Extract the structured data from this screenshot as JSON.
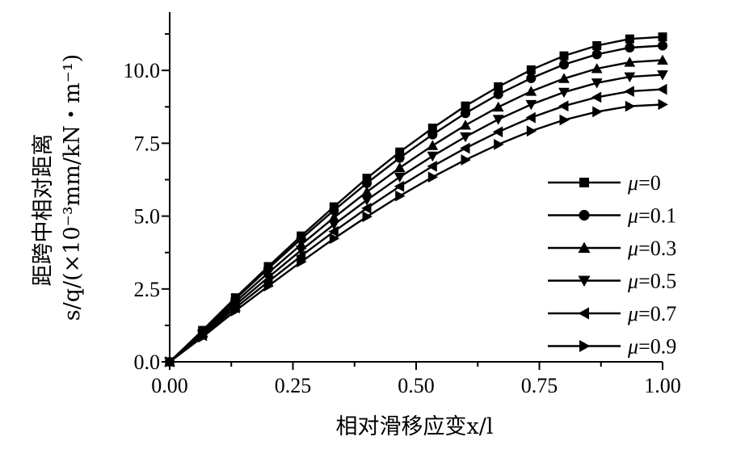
{
  "chart_data": {
    "type": "line",
    "xlabel": "相对滑移应变x/l",
    "ylabel_line1": "距跨中相对距离",
    "ylabel_line2": "s/q/(×10⁻³mm/kN・m⁻¹)",
    "xlim": [
      0,
      1
    ],
    "ylim": [
      0,
      12
    ],
    "x_ticks": [
      "0.00",
      "0.25",
      "0.50",
      "0.75",
      "1.00"
    ],
    "y_ticks": [
      "0.0",
      "2.5",
      "5.0",
      "7.5",
      "10.0"
    ],
    "grid": false,
    "legend_position": "right",
    "x": [
      0,
      0.0667,
      0.1333,
      0.2,
      0.2667,
      0.3333,
      0.4,
      0.4667,
      0.5333,
      0.6,
      0.6667,
      0.7333,
      0.8,
      0.8667,
      0.9333,
      1.0
    ],
    "series": [
      {
        "name": "μ=0",
        "marker": "square",
        "values": [
          0,
          1.08,
          2.2,
          3.27,
          4.32,
          5.32,
          6.3,
          7.2,
          8.02,
          8.78,
          9.44,
          10.02,
          10.5,
          10.85,
          11.08,
          11.15
        ]
      },
      {
        "name": "μ=0.1",
        "marker": "circle",
        "values": [
          0,
          1.05,
          2.15,
          3.2,
          4.22,
          5.2,
          6.13,
          7.0,
          7.8,
          8.53,
          9.18,
          9.73,
          10.2,
          10.55,
          10.78,
          10.85
        ]
      },
      {
        "name": "μ=0.3",
        "marker": "triangle-up",
        "values": [
          0,
          1.0,
          2.05,
          3.05,
          4.02,
          4.95,
          5.83,
          6.66,
          7.42,
          8.12,
          8.74,
          9.28,
          9.72,
          10.06,
          10.28,
          10.35
        ]
      },
      {
        "name": "μ=0.5",
        "marker": "triangle-down",
        "values": [
          0,
          0.95,
          1.95,
          2.9,
          3.83,
          4.71,
          5.55,
          6.34,
          7.06,
          7.72,
          8.32,
          8.83,
          9.25,
          9.57,
          9.78,
          9.85
        ]
      },
      {
        "name": "μ=0.7",
        "marker": "triangle-left",
        "values": [
          0,
          0.9,
          1.85,
          2.75,
          3.63,
          4.47,
          5.27,
          6.02,
          6.71,
          7.33,
          7.89,
          8.38,
          8.78,
          9.08,
          9.28,
          9.35
        ]
      },
      {
        "name": "μ=0.9",
        "marker": "triangle-right",
        "values": [
          0,
          0.85,
          1.75,
          2.6,
          3.43,
          4.23,
          4.98,
          5.69,
          6.34,
          6.93,
          7.46,
          7.92,
          8.3,
          8.58,
          8.77,
          8.83
        ]
      }
    ]
  }
}
